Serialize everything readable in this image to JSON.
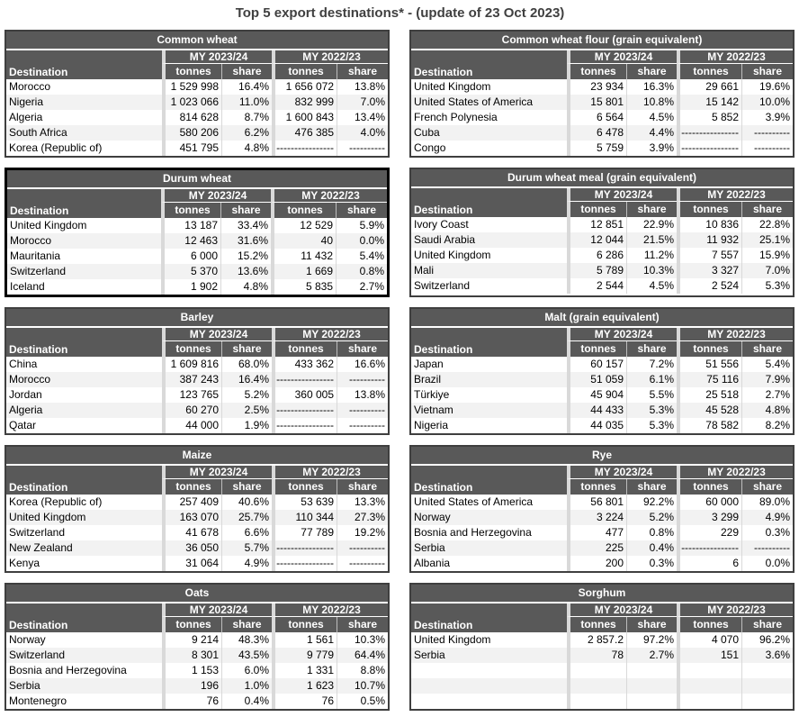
{
  "page_title": "Top 5 export destinations* - (update of 23 Oct 2023)",
  "periods": [
    "MY 2023/24",
    "MY 2022/23"
  ],
  "columns": {
    "destination": "Destination",
    "tonnes": "tonnes",
    "share": "share"
  },
  "no_data_tonnes": "----------------",
  "no_data_share": "----------",
  "colors": {
    "header_bg": "#595959",
    "header_text": "#ffffff",
    "title_text": "#404040",
    "row_alt_bg": "#f2f2f2",
    "table_border": "#3f3f3f",
    "highlight_border": "#000000",
    "group_separator": "#d9d9d9"
  },
  "tables": [
    {
      "title": "Common wheat",
      "emphasized": false,
      "rows": [
        {
          "destination": "Morocco",
          "t1": "1 529 998",
          "s1": "16.4%",
          "t2": "1 656 072",
          "s2": "13.8%"
        },
        {
          "destination": "Nigeria",
          "t1": "1 023 066",
          "s1": "11.0%",
          "t2": "832 999",
          "s2": "7.0%"
        },
        {
          "destination": "Algeria",
          "t1": "814 628",
          "s1": "8.7%",
          "t2": "1 600 843",
          "s2": "13.4%"
        },
        {
          "destination": "South Africa",
          "t1": "580 206",
          "s1": "6.2%",
          "t2": "476 385",
          "s2": "4.0%"
        },
        {
          "destination": "Korea (Republic of)",
          "t1": "451 795",
          "s1": "4.8%",
          "t2": "----------------",
          "s2": "----------"
        }
      ]
    },
    {
      "title": "Common wheat flour (grain equivalent)",
      "emphasized": false,
      "rows": [
        {
          "destination": "United Kingdom",
          "t1": "23 934",
          "s1": "16.3%",
          "t2": "29 661",
          "s2": "19.6%"
        },
        {
          "destination": "United States of America",
          "t1": "15 801",
          "s1": "10.8%",
          "t2": "15 142",
          "s2": "10.0%"
        },
        {
          "destination": "French Polynesia",
          "t1": "6 564",
          "s1": "4.5%",
          "t2": "5 852",
          "s2": "3.9%"
        },
        {
          "destination": "Cuba",
          "t1": "6 478",
          "s1": "4.4%",
          "t2": "----------------",
          "s2": "----------"
        },
        {
          "destination": "Congo",
          "t1": "5 759",
          "s1": "3.9%",
          "t2": "----------------",
          "s2": "----------"
        }
      ]
    },
    {
      "title": "Durum wheat",
      "emphasized": true,
      "rows": [
        {
          "destination": "United Kingdom",
          "t1": "13 187",
          "s1": "33.4%",
          "t2": "12 529",
          "s2": "5.9%"
        },
        {
          "destination": "Morocco",
          "t1": "12 463",
          "s1": "31.6%",
          "t2": "40",
          "s2": "0.0%"
        },
        {
          "destination": "Mauritania",
          "t1": "6 000",
          "s1": "15.2%",
          "t2": "11 432",
          "s2": "5.4%"
        },
        {
          "destination": "Switzerland",
          "t1": "5 370",
          "s1": "13.6%",
          "t2": "1 669",
          "s2": "0.8%"
        },
        {
          "destination": "Iceland",
          "t1": "1 902",
          "s1": "4.8%",
          "t2": "5 835",
          "s2": "2.7%"
        }
      ]
    },
    {
      "title": "Durum wheat meal (grain equivalent)",
      "emphasized": false,
      "rows": [
        {
          "destination": "Ivory Coast",
          "t1": "12 851",
          "s1": "22.9%",
          "t2": "10 836",
          "s2": "22.8%"
        },
        {
          "destination": "Saudi Arabia",
          "t1": "12 044",
          "s1": "21.5%",
          "t2": "11 932",
          "s2": "25.1%"
        },
        {
          "destination": "United Kingdom",
          "t1": "6 286",
          "s1": "11.2%",
          "t2": "7 557",
          "s2": "15.9%"
        },
        {
          "destination": "Mali",
          "t1": "5 789",
          "s1": "10.3%",
          "t2": "3 327",
          "s2": "7.0%"
        },
        {
          "destination": "Switzerland",
          "t1": "2 544",
          "s1": "4.5%",
          "t2": "2 524",
          "s2": "5.3%"
        }
      ]
    },
    {
      "title": "Barley",
      "emphasized": false,
      "rows": [
        {
          "destination": "China",
          "t1": "1 609 816",
          "s1": "68.0%",
          "t2": "433 362",
          "s2": "16.6%"
        },
        {
          "destination": "Morocco",
          "t1": "387 243",
          "s1": "16.4%",
          "t2": "----------------",
          "s2": "----------"
        },
        {
          "destination": "Jordan",
          "t1": "123 765",
          "s1": "5.2%",
          "t2": "360 005",
          "s2": "13.8%"
        },
        {
          "destination": "Algeria",
          "t1": "60 270",
          "s1": "2.5%",
          "t2": "----------------",
          "s2": "----------"
        },
        {
          "destination": "Qatar",
          "t1": "44 000",
          "s1": "1.9%",
          "t2": "----------------",
          "s2": "----------"
        }
      ]
    },
    {
      "title": "Malt (grain equivalent)",
      "emphasized": false,
      "rows": [
        {
          "destination": "Japan",
          "t1": "60 157",
          "s1": "7.2%",
          "t2": "51 556",
          "s2": "5.4%"
        },
        {
          "destination": "Brazil",
          "t1": "51 059",
          "s1": "6.1%",
          "t2": "75 116",
          "s2": "7.9%"
        },
        {
          "destination": "Türkiye",
          "t1": "45 904",
          "s1": "5.5%",
          "t2": "25 518",
          "s2": "2.7%"
        },
        {
          "destination": "Vietnam",
          "t1": "44 433",
          "s1": "5.3%",
          "t2": "45 528",
          "s2": "4.8%"
        },
        {
          "destination": "Nigeria",
          "t1": "44 035",
          "s1": "5.3%",
          "t2": "78 582",
          "s2": "8.2%"
        }
      ]
    },
    {
      "title": "Maize",
      "emphasized": false,
      "rows": [
        {
          "destination": "Korea (Republic of)",
          "t1": "257 409",
          "s1": "40.6%",
          "t2": "53 639",
          "s2": "13.3%"
        },
        {
          "destination": "United Kingdom",
          "t1": "163 070",
          "s1": "25.7%",
          "t2": "110 344",
          "s2": "27.3%"
        },
        {
          "destination": "Switzerland",
          "t1": "41 678",
          "s1": "6.6%",
          "t2": "77 789",
          "s2": "19.2%"
        },
        {
          "destination": "New Zealand",
          "t1": "36 050",
          "s1": "5.7%",
          "t2": "----------------",
          "s2": "----------"
        },
        {
          "destination": "Kenya",
          "t1": "31 064",
          "s1": "4.9%",
          "t2": "----------------",
          "s2": "----------"
        }
      ]
    },
    {
      "title": "Rye",
      "emphasized": false,
      "rows": [
        {
          "destination": "United States of America",
          "t1": "56 801",
          "s1": "92.2%",
          "t2": "60 000",
          "s2": "89.0%"
        },
        {
          "destination": "Norway",
          "t1": "3 224",
          "s1": "5.2%",
          "t2": "3 299",
          "s2": "4.9%"
        },
        {
          "destination": "Bosnia and Herzegovina",
          "t1": "477",
          "s1": "0.8%",
          "t2": "229",
          "s2": "0.3%"
        },
        {
          "destination": "Serbia",
          "t1": "225",
          "s1": "0.4%",
          "t2": "----------------",
          "s2": "----------"
        },
        {
          "destination": "Albania",
          "t1": "200",
          "s1": "0.3%",
          "t2": "6",
          "s2": "0.0%"
        }
      ]
    },
    {
      "title": "Oats",
      "emphasized": false,
      "rows": [
        {
          "destination": "Norway",
          "t1": "9 214",
          "s1": "48.3%",
          "t2": "1 561",
          "s2": "10.3%"
        },
        {
          "destination": "Switzerland",
          "t1": "8 301",
          "s1": "43.5%",
          "t2": "9 779",
          "s2": "64.4%"
        },
        {
          "destination": "Bosnia and Herzegovina",
          "t1": "1 153",
          "s1": "6.0%",
          "t2": "1 331",
          "s2": "8.8%"
        },
        {
          "destination": "Serbia",
          "t1": "196",
          "s1": "1.0%",
          "t2": "1 623",
          "s2": "10.7%"
        },
        {
          "destination": "Montenegro",
          "t1": "76",
          "s1": "0.4%",
          "t2": "76",
          "s2": "0.5%"
        }
      ]
    },
    {
      "title": "Sorghum",
      "emphasized": false,
      "rows": [
        {
          "destination": "United Kingdom",
          "t1": "2 857.2",
          "s1": "97.2%",
          "t2": "4 070",
          "s2": "96.2%"
        },
        {
          "destination": "Serbia",
          "t1": "78",
          "s1": "2.7%",
          "t2": "151",
          "s2": "3.6%"
        },
        {
          "destination": "",
          "t1": "",
          "s1": "",
          "t2": "",
          "s2": ""
        },
        {
          "destination": "",
          "t1": "",
          "s1": "",
          "t2": "",
          "s2": ""
        },
        {
          "destination": "",
          "t1": "",
          "s1": "",
          "t2": "",
          "s2": ""
        }
      ]
    }
  ]
}
